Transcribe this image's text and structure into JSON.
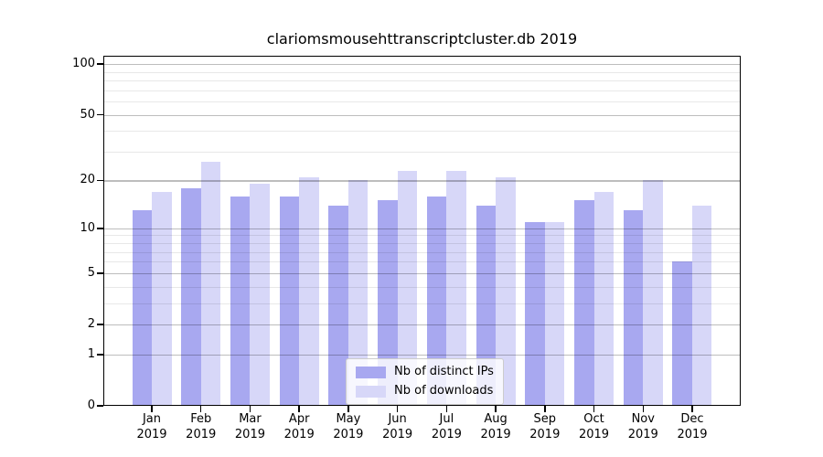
{
  "title": "clariomsmousehttranscriptcluster.db 2019",
  "chart_data": {
    "type": "bar",
    "title": "clariomsmousehttranscriptcluster.db 2019",
    "categories": [
      "Jan 2019",
      "Feb 2019",
      "Mar 2019",
      "Apr 2019",
      "May 2019",
      "Jun 2019",
      "Jul 2019",
      "Aug 2019",
      "Sep 2019",
      "Oct 2019",
      "Nov 2019",
      "Dec 2019"
    ],
    "series": [
      {
        "name": "Nb of distinct IPs",
        "color": "#a8a8f0",
        "values": [
          13,
          18,
          16,
          16,
          14,
          15,
          16,
          14,
          11,
          15,
          13,
          6
        ]
      },
      {
        "name": "Nb of downloads",
        "color": "#d7d7f8",
        "values": [
          17,
          26,
          19,
          21,
          20,
          23,
          23,
          21,
          11,
          17,
          20,
          14
        ]
      }
    ],
    "xlabel": "",
    "ylabel": "",
    "scale": "log1p",
    "ylim": [
      0,
      113
    ],
    "y_ticks": [
      0,
      1,
      2,
      5,
      10,
      20,
      50,
      100
    ],
    "y_minor_ticks": [
      3,
      4,
      6,
      7,
      8,
      9,
      30,
      40,
      60,
      70,
      80,
      90
    ],
    "grid": true,
    "legend_position": "bottom-center"
  }
}
